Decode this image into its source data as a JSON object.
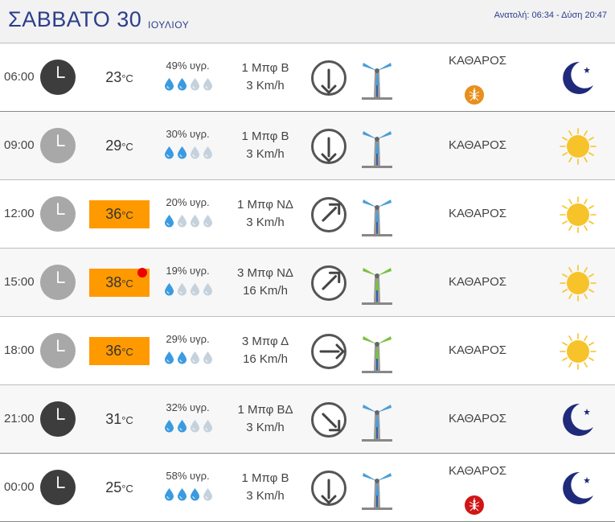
{
  "header": {
    "day": "ΣΑΒΒΑΤΟ 30",
    "month": "ΙΟΥΛΙΟΥ",
    "sun_times": "Ανατολή: 06:34  - Δύση 20:47"
  },
  "colors": {
    "title_blue": "#2c3e8c",
    "hot_bg": "#ff9900",
    "hot_dot": "#e00000",
    "drop_filled": "#3a9be0",
    "drop_empty": "#c5d2dc",
    "sun": "#f7c32a",
    "moon": "#1f2a7a",
    "mosquito_low": "#e88f1c",
    "mosquito_high": "#d01515"
  },
  "rows": [
    {
      "time": "06:00",
      "clock": "dark",
      "clock_icon": "clock-icon",
      "temp": "23",
      "temp_unit": "°C",
      "hot": false,
      "max_dot": false,
      "humidity": "49% υγρ.",
      "drops_filled": 2,
      "wind_force": "1 Μπφ Β",
      "wind_speed": "3 Km/h",
      "wind_dir_icon": "arrow-down-icon",
      "wind_angle": 180,
      "turbine": "blue",
      "condition": "ΚΑΘΑΡΟΣ",
      "mosquito": "low",
      "mosquito_icon": "mosquito-icon",
      "sky": "moon",
      "sky_icon": "moon-icon"
    },
    {
      "time": "09:00",
      "clock": "light",
      "clock_icon": "clock-icon",
      "temp": "29",
      "temp_unit": "°C",
      "hot": false,
      "max_dot": false,
      "humidity": "30% υγρ.",
      "drops_filled": 2,
      "wind_force": "1 Μπφ Β",
      "wind_speed": "3 Km/h",
      "wind_dir_icon": "arrow-down-icon",
      "wind_angle": 180,
      "turbine": "blue",
      "condition": "ΚΑΘΑΡΟΣ",
      "mosquito": null,
      "sky": "sun",
      "sky_icon": "sun-icon"
    },
    {
      "time": "12:00",
      "clock": "light",
      "clock_icon": "clock-icon",
      "temp": "36",
      "temp_unit": "°C",
      "hot": true,
      "max_dot": false,
      "humidity": "20% υγρ.",
      "drops_filled": 1,
      "wind_force": "1 Μπφ ΝΔ",
      "wind_speed": "3 Km/h",
      "wind_dir_icon": "arrow-up-right-icon",
      "wind_angle": 45,
      "turbine": "blue",
      "condition": "ΚΑΘΑΡΟΣ",
      "mosquito": null,
      "sky": "sun",
      "sky_icon": "sun-icon"
    },
    {
      "time": "15:00",
      "clock": "light",
      "clock_icon": "clock-icon",
      "temp": "38",
      "temp_unit": "°C",
      "hot": true,
      "max_dot": true,
      "humidity": "19% υγρ.",
      "drops_filled": 1,
      "wind_force": "3 Μπφ ΝΔ",
      "wind_speed": "16 Km/h",
      "wind_dir_icon": "arrow-up-right-icon",
      "wind_angle": 45,
      "turbine": "green",
      "condition": "ΚΑΘΑΡΟΣ",
      "mosquito": null,
      "sky": "sun",
      "sky_icon": "sun-icon"
    },
    {
      "time": "18:00",
      "clock": "light",
      "clock_icon": "clock-icon",
      "temp": "36",
      "temp_unit": "°C",
      "hot": true,
      "max_dot": false,
      "humidity": "29% υγρ.",
      "drops_filled": 2,
      "wind_force": "3 Μπφ Δ",
      "wind_speed": "16 Km/h",
      "wind_dir_icon": "arrow-right-icon",
      "wind_angle": 90,
      "turbine": "green",
      "condition": "ΚΑΘΑΡΟΣ",
      "mosquito": null,
      "sky": "sun",
      "sky_icon": "sun-icon"
    },
    {
      "time": "21:00",
      "clock": "dark",
      "clock_icon": "clock-icon",
      "temp": "31",
      "temp_unit": "°C",
      "hot": false,
      "max_dot": false,
      "humidity": "32% υγρ.",
      "drops_filled": 2,
      "wind_force": "1 Μπφ ΒΔ",
      "wind_speed": "3 Km/h",
      "wind_dir_icon": "arrow-down-right-icon",
      "wind_angle": 135,
      "turbine": "blue",
      "condition": "ΚΑΘΑΡΟΣ",
      "mosquito": null,
      "sky": "moon",
      "sky_icon": "moon-icon"
    },
    {
      "time": "00:00",
      "clock": "dark",
      "clock_icon": "clock-icon",
      "temp": "25",
      "temp_unit": "°C",
      "hot": false,
      "max_dot": false,
      "humidity": "58% υγρ.",
      "drops_filled": 3,
      "wind_force": "1 Μπφ Β",
      "wind_speed": "3 Km/h",
      "wind_dir_icon": "arrow-down-icon",
      "wind_angle": 180,
      "turbine": "blue",
      "condition": "ΚΑΘΑΡΟΣ",
      "mosquito": "high",
      "mosquito_icon": "mosquito-icon",
      "sky": "moon",
      "sky_icon": "moon-icon"
    }
  ]
}
